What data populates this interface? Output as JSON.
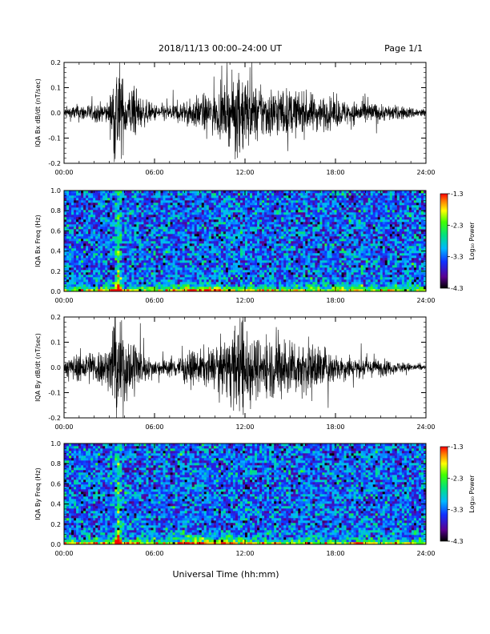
{
  "header": {
    "title": "2018/11/13  00:00–24:00 UT",
    "page": "Page 1/1"
  },
  "footer": {
    "xlabel": "Universal Time (hh:mm)"
  },
  "colorbar": {
    "label": "Log₁₀ Power",
    "ticks": [
      "-1.3",
      "-2.3",
      "-3.3",
      "-4.3"
    ],
    "range": [
      -4.3,
      -1.3
    ]
  },
  "chart_data": [
    {
      "type": "line",
      "ylabel": "IQA Bx dB/dt (nT/sec)",
      "x_ticks": [
        "00:00",
        "06:00",
        "12:00",
        "18:00",
        "24:00"
      ],
      "y_ticks": [
        "0.2",
        "0.1",
        "0.0",
        "-0.1",
        "-0.2"
      ],
      "xlim": [
        0,
        24
      ],
      "ylim": [
        -0.2,
        0.2
      ],
      "amplitude_envelope": {
        "x_hours": [
          0,
          1,
          2,
          3,
          3.4,
          3.6,
          3.9,
          4.2,
          4.6,
          5.0,
          5.5,
          6,
          7,
          8,
          9,
          10,
          11,
          11.5,
          12,
          12.5,
          13,
          14,
          15,
          16,
          17,
          18,
          19,
          20,
          21,
          22,
          23,
          24
        ],
        "amp": [
          0.02,
          0.03,
          0.03,
          0.04,
          0.2,
          0.2,
          0.12,
          0.08,
          0.1,
          0.06,
          0.04,
          0.03,
          0.03,
          0.04,
          0.06,
          0.07,
          0.1,
          0.14,
          0.15,
          0.1,
          0.09,
          0.09,
          0.08,
          0.07,
          0.06,
          0.05,
          0.04,
          0.04,
          0.03,
          0.025,
          0.02,
          0.015
        ]
      }
    },
    {
      "type": "heatmap",
      "ylabel": "IQA Bx Freq (Hz)",
      "x_ticks": [
        "00:00",
        "06:00",
        "12:00",
        "18:00",
        "24:00"
      ],
      "y_ticks": [
        "1.0",
        "0.8",
        "0.6",
        "0.4",
        "0.2",
        "0.0"
      ],
      "xlim": [
        0,
        24
      ],
      "ylim": [
        0,
        1.0
      ],
      "colorbar": "Log₁₀ Power",
      "zlim": [
        -4.3,
        -1.3
      ],
      "features": [
        {
          "time_hours": 3.6,
          "note": "broadband burst",
          "max_log_power": -1.3
        },
        {
          "time_range_hours": [
            8.5,
            10
          ],
          "freq_max_hz": 0.1,
          "log_power": -2.5
        }
      ]
    },
    {
      "type": "line",
      "ylabel": "IQA By dB/dt (nT/sec)",
      "x_ticks": [
        "00:00",
        "06:00",
        "12:00",
        "18:00",
        "24:00"
      ],
      "y_ticks": [
        "0.2",
        "0.1",
        "0.0",
        "-0.1",
        "-0.2"
      ],
      "xlim": [
        0,
        24
      ],
      "ylim": [
        -0.2,
        0.2
      ],
      "amplitude_envelope": {
        "x_hours": [
          0,
          1,
          2,
          3,
          3.4,
          3.6,
          3.9,
          4.2,
          4.6,
          5.0,
          5.5,
          6,
          7,
          8,
          9,
          10,
          11,
          11.5,
          12,
          12.5,
          13,
          14,
          15,
          16,
          17,
          18,
          19,
          20,
          21,
          22,
          23,
          24
        ],
        "amp": [
          0.03,
          0.05,
          0.06,
          0.07,
          0.2,
          0.2,
          0.14,
          0.1,
          0.12,
          0.07,
          0.04,
          0.03,
          0.03,
          0.05,
          0.06,
          0.07,
          0.11,
          0.15,
          0.2,
          0.11,
          0.1,
          0.11,
          0.1,
          0.09,
          0.08,
          0.05,
          0.04,
          0.03,
          0.03,
          0.02,
          0.015,
          0.01
        ]
      }
    },
    {
      "type": "heatmap",
      "ylabel": "IQA By Freq (Hz)",
      "x_ticks": [
        "00:00",
        "06:00",
        "12:00",
        "18:00",
        "24:00"
      ],
      "y_ticks": [
        "1.0",
        "0.8",
        "0.6",
        "0.4",
        "0.2",
        "0.0"
      ],
      "xlim": [
        0,
        24
      ],
      "ylim": [
        0,
        1.0
      ],
      "colorbar": "Log₁₀ Power",
      "zlim": [
        -4.3,
        -1.3
      ],
      "features": [
        {
          "time_hours": 3.6,
          "note": "broadband burst",
          "max_log_power": -1.3
        },
        {
          "time_range_hours": [
            8.5,
            11
          ],
          "freq_max_hz": 0.15,
          "log_power": -2.4
        }
      ]
    }
  ]
}
